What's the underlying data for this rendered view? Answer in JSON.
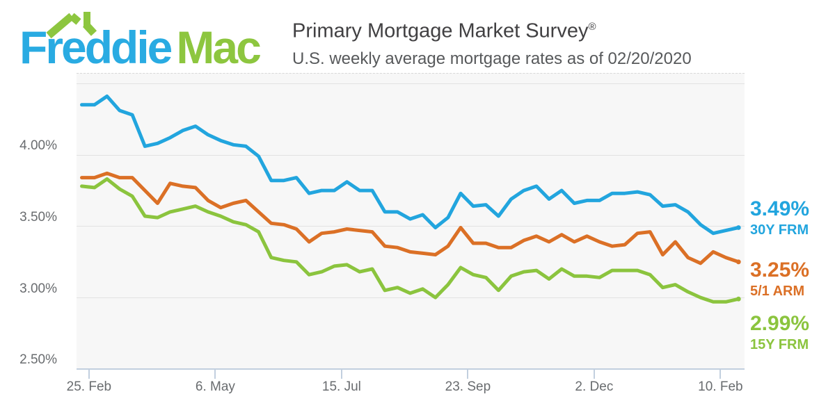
{
  "header": {
    "logo": {
      "brand_word_1": "Freddie",
      "brand_word_2": "Mac",
      "roof_icon": "house-roof-with-chimney"
    },
    "title": "Primary Mortgage Market Survey",
    "registered_mark": "®",
    "subtitle": "U.S. weekly average mortgage rates as of 02/20/2020"
  },
  "chart_data": {
    "type": "line",
    "title": "Primary Mortgage Market Survey",
    "subtitle": "U.S. weekly average mortgage rates as of 02/20/2020",
    "grid": "horizontal",
    "legend_position": "right-of-line-ends",
    "x_tick_labels": [
      "25. Feb",
      "6. May",
      "15. Jul",
      "23. Sep",
      "2. Dec",
      "10. Feb"
    ],
    "y_tick_labels": [
      "4.00%",
      "3.50%",
      "3.00%",
      "2.50%"
    ],
    "y_ticks": [
      4.0,
      3.5,
      3.0,
      2.5
    ],
    "y_axis_range": [
      2.5,
      4.57
    ],
    "x_range_weekly_points": 53,
    "colors": {
      "blue": "#22a5de",
      "orange": "#db7026",
      "green": "#8bc43e"
    },
    "series": [
      {
        "name": "30Y FRM",
        "end_value_label": "3.49%",
        "color": "#22a5de",
        "values": [
          4.35,
          4.35,
          4.41,
          4.31,
          4.28,
          4.06,
          4.08,
          4.12,
          4.17,
          4.2,
          4.14,
          4.1,
          4.07,
          4.06,
          3.99,
          3.82,
          3.82,
          3.84,
          3.73,
          3.75,
          3.75,
          3.81,
          3.75,
          3.75,
          3.6,
          3.6,
          3.55,
          3.58,
          3.49,
          3.56,
          3.73,
          3.64,
          3.65,
          3.57,
          3.69,
          3.75,
          3.78,
          3.69,
          3.75,
          3.66,
          3.68,
          3.68,
          3.73,
          3.73,
          3.74,
          3.72,
          3.64,
          3.65,
          3.6,
          3.51,
          3.45,
          3.47,
          3.49
        ]
      },
      {
        "name": "5/1 ARM",
        "end_value_label": "3.25%",
        "color": "#db7026",
        "values": [
          3.84,
          3.84,
          3.87,
          3.84,
          3.84,
          3.75,
          3.66,
          3.8,
          3.78,
          3.77,
          3.68,
          3.63,
          3.66,
          3.68,
          3.6,
          3.52,
          3.51,
          3.48,
          3.39,
          3.45,
          3.46,
          3.48,
          3.47,
          3.46,
          3.36,
          3.35,
          3.32,
          3.31,
          3.3,
          3.36,
          3.49,
          3.38,
          3.38,
          3.35,
          3.35,
          3.4,
          3.43,
          3.39,
          3.44,
          3.39,
          3.43,
          3.39,
          3.36,
          3.37,
          3.45,
          3.46,
          3.3,
          3.39,
          3.28,
          3.24,
          3.32,
          3.28,
          3.25
        ]
      },
      {
        "name": "15Y FRM",
        "end_value_label": "2.99%",
        "color": "#8bc43e",
        "values": [
          3.78,
          3.77,
          3.83,
          3.76,
          3.71,
          3.57,
          3.56,
          3.6,
          3.62,
          3.64,
          3.6,
          3.57,
          3.53,
          3.51,
          3.46,
          3.28,
          3.26,
          3.25,
          3.16,
          3.18,
          3.22,
          3.23,
          3.18,
          3.2,
          3.05,
          3.07,
          3.03,
          3.06,
          3.0,
          3.09,
          3.21,
          3.16,
          3.14,
          3.05,
          3.15,
          3.18,
          3.19,
          3.13,
          3.2,
          3.15,
          3.15,
          3.14,
          3.19,
          3.19,
          3.19,
          3.16,
          3.07,
          3.09,
          3.04,
          3.0,
          2.97,
          2.97,
          2.99
        ]
      }
    ]
  }
}
